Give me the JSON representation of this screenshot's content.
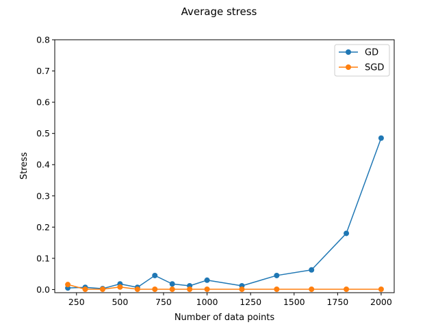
{
  "chart_data": {
    "type": "line",
    "title": "Average stress",
    "xlabel": "Number of data points",
    "ylabel": "Stress",
    "xlim": [
      125,
      2075
    ],
    "ylim": [
      -0.01,
      0.8
    ],
    "xticks": [
      250,
      500,
      750,
      1000,
      1250,
      1500,
      1750,
      2000
    ],
    "yticks": [
      0.0,
      0.1,
      0.2,
      0.3,
      0.4,
      0.5,
      0.6,
      0.7,
      0.8
    ],
    "xtick_labels": [
      "250",
      "500",
      "750",
      "1000",
      "1250",
      "1500",
      "1750",
      "2000"
    ],
    "ytick_labels": [
      "0.0",
      "0.1",
      "0.2",
      "0.3",
      "0.4",
      "0.5",
      "0.6",
      "0.7",
      "0.8"
    ],
    "grid": false,
    "legend_position": "top-right",
    "x": [
      200,
      300,
      400,
      500,
      600,
      700,
      800,
      900,
      1000,
      1200,
      1400,
      1600,
      1800,
      2000
    ],
    "series": [
      {
        "name": "GD",
        "color": "#1f77b4",
        "values": [
          0.005,
          0.007,
          0.003,
          0.018,
          0.007,
          0.045,
          0.018,
          0.012,
          0.03,
          0.012,
          0.045,
          0.063,
          0.18,
          0.485
        ]
      },
      {
        "name": "SGD",
        "color": "#ff7f0e",
        "values": [
          0.016,
          0.001,
          0.001,
          0.008,
          0.001,
          0.001,
          0.001,
          0.001,
          0.001,
          0.001,
          0.001,
          0.001,
          0.001,
          0.001
        ]
      }
    ]
  }
}
